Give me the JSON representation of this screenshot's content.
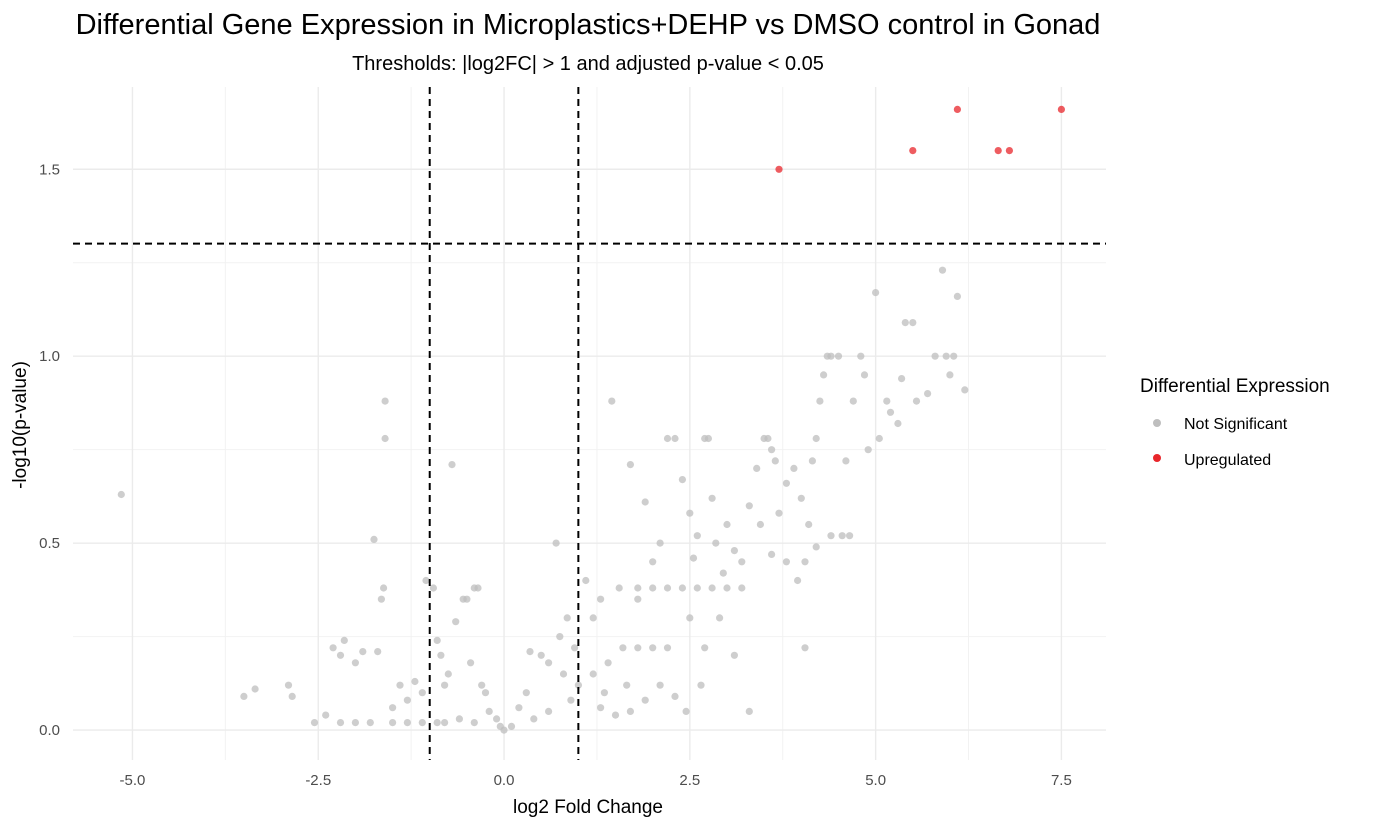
{
  "chart_data": {
    "type": "scatter",
    "title": "Differential Gene Expression in Microplastics+DEHP vs DMSO control in Gonad",
    "subtitle": "Thresholds: |log2FC| > 1 and adjusted p-value < 0.05",
    "xlabel": "log2 Fold Change",
    "ylabel": "-log10(p-value)",
    "xlim": [
      -5.8,
      8.1
    ],
    "ylim": [
      -0.08,
      1.72
    ],
    "x_ticks": [
      -5,
      -2.5,
      0,
      2.5,
      5,
      7.5
    ],
    "x_tick_labels": [
      "-5.0",
      "-2.5",
      "0.0",
      "2.5",
      "5.0",
      "7.5"
    ],
    "y_ticks": [
      0,
      0.5,
      1,
      1.5
    ],
    "y_tick_labels": [
      "0.0",
      "0.5",
      "1.0",
      "1.5"
    ],
    "grid": true,
    "thresholds": {
      "vertical": [
        -1,
        1
      ],
      "horizontal": 1.301
    },
    "legend": {
      "title": "Differential Expression",
      "position": "right",
      "entries": [
        {
          "label": "Not Significant",
          "color": "#bebebe"
        },
        {
          "label": "Upregulated",
          "color": "#e8262b"
        }
      ]
    },
    "series": [
      {
        "name": "Not Significant",
        "color": "#bebebe",
        "points": [
          [
            -5.15,
            0.63
          ],
          [
            -3.5,
            0.09
          ],
          [
            -3.35,
            0.11
          ],
          [
            -2.9,
            0.12
          ],
          [
            -2.85,
            0.09
          ],
          [
            -2.55,
            0.02
          ],
          [
            -2.4,
            0.04
          ],
          [
            -2.3,
            0.22
          ],
          [
            -2.2,
            0.2
          ],
          [
            -2.15,
            0.24
          ],
          [
            -2.0,
            0.18
          ],
          [
            -1.9,
            0.21
          ],
          [
            -1.75,
            0.51
          ],
          [
            -1.7,
            0.21
          ],
          [
            -1.65,
            0.35
          ],
          [
            -1.62,
            0.38
          ],
          [
            -1.6,
            0.88
          ],
          [
            -1.6,
            0.78
          ],
          [
            -1.5,
            0.06
          ],
          [
            -1.4,
            0.12
          ],
          [
            -1.3,
            0.08
          ],
          [
            -1.2,
            0.13
          ],
          [
            -1.1,
            0.1
          ],
          [
            -1.05,
            0.4
          ],
          [
            -0.95,
            0.38
          ],
          [
            -0.9,
            0.24
          ],
          [
            -0.85,
            0.2
          ],
          [
            -0.8,
            0.12
          ],
          [
            -0.75,
            0.15
          ],
          [
            -0.7,
            0.71
          ],
          [
            -0.65,
            0.29
          ],
          [
            -0.55,
            0.35
          ],
          [
            -0.5,
            0.35
          ],
          [
            -0.45,
            0.18
          ],
          [
            -0.4,
            0.38
          ],
          [
            -0.35,
            0.38
          ],
          [
            -0.3,
            0.12
          ],
          [
            -0.25,
            0.1
          ],
          [
            -0.2,
            0.05
          ],
          [
            -0.1,
            0.03
          ],
          [
            0.2,
            0.06
          ],
          [
            0.3,
            0.1
          ],
          [
            0.35,
            0.21
          ],
          [
            0.5,
            0.2
          ],
          [
            0.6,
            0.18
          ],
          [
            0.7,
            0.5
          ],
          [
            0.75,
            0.25
          ],
          [
            0.8,
            0.15
          ],
          [
            0.85,
            0.3
          ],
          [
            0.95,
            0.22
          ],
          [
            1.1,
            0.4
          ],
          [
            1.2,
            0.3
          ],
          [
            1.3,
            0.35
          ],
          [
            1.45,
            0.88
          ],
          [
            1.55,
            0.38
          ],
          [
            1.7,
            0.71
          ],
          [
            1.8,
            0.35
          ],
          [
            1.9,
            0.61
          ],
          [
            2.0,
            0.45
          ],
          [
            2.1,
            0.5
          ],
          [
            2.2,
            0.78
          ],
          [
            2.3,
            0.78
          ],
          [
            2.4,
            0.67
          ],
          [
            2.5,
            0.58
          ],
          [
            2.6,
            0.52
          ],
          [
            2.7,
            0.78
          ],
          [
            2.75,
            0.78
          ],
          [
            2.8,
            0.62
          ],
          [
            2.85,
            0.5
          ],
          [
            3.0,
            0.55
          ],
          [
            3.1,
            0.48
          ],
          [
            3.2,
            0.45
          ],
          [
            3.3,
            0.6
          ],
          [
            3.4,
            0.7
          ],
          [
            3.5,
            0.78
          ],
          [
            3.55,
            0.78
          ],
          [
            3.6,
            0.75
          ],
          [
            3.65,
            0.72
          ],
          [
            3.7,
            0.58
          ],
          [
            3.8,
            0.66
          ],
          [
            3.9,
            0.7
          ],
          [
            4.0,
            0.62
          ],
          [
            4.05,
            0.22
          ],
          [
            4.1,
            0.55
          ],
          [
            4.15,
            0.72
          ],
          [
            4.2,
            0.78
          ],
          [
            4.25,
            0.88
          ],
          [
            4.3,
            0.95
          ],
          [
            4.35,
            1.0
          ],
          [
            4.4,
            1.0
          ],
          [
            4.5,
            1.0
          ],
          [
            4.55,
            0.52
          ],
          [
            4.6,
            0.72
          ],
          [
            4.65,
            0.52
          ],
          [
            4.7,
            0.88
          ],
          [
            4.8,
            1.0
          ],
          [
            4.85,
            0.95
          ],
          [
            4.9,
            0.75
          ],
          [
            5.0,
            1.17
          ],
          [
            5.05,
            0.78
          ],
          [
            5.15,
            0.88
          ],
          [
            5.2,
            0.85
          ],
          [
            5.3,
            0.82
          ],
          [
            5.35,
            0.94
          ],
          [
            5.4,
            1.09
          ],
          [
            5.5,
            1.09
          ],
          [
            5.55,
            0.88
          ],
          [
            5.7,
            0.9
          ],
          [
            5.8,
            1.0
          ],
          [
            5.9,
            1.23
          ],
          [
            5.95,
            1.0
          ],
          [
            6.0,
            0.95
          ],
          [
            6.05,
            1.0
          ],
          [
            6.1,
            1.16
          ],
          [
            6.2,
            0.91
          ],
          [
            4.2,
            0.49
          ],
          [
            4.4,
            0.52
          ],
          [
            3.95,
            0.4
          ],
          [
            3.6,
            0.47
          ],
          [
            3.2,
            0.38
          ],
          [
            3.0,
            0.38
          ],
          [
            2.8,
            0.38
          ],
          [
            2.6,
            0.38
          ],
          [
            2.4,
            0.38
          ],
          [
            2.2,
            0.38
          ],
          [
            2.0,
            0.38
          ],
          [
            1.8,
            0.38
          ],
          [
            2.9,
            0.3
          ],
          [
            2.5,
            0.3
          ],
          [
            2.2,
            0.22
          ],
          [
            2.0,
            0.22
          ],
          [
            1.8,
            0.22
          ],
          [
            1.6,
            0.22
          ],
          [
            1.4,
            0.18
          ],
          [
            1.2,
            0.15
          ],
          [
            1.0,
            0.12
          ],
          [
            2.1,
            0.12
          ],
          [
            2.3,
            0.09
          ],
          [
            2.45,
            0.05
          ],
          [
            1.7,
            0.05
          ],
          [
            1.5,
            0.04
          ],
          [
            1.3,
            0.06
          ],
          [
            0.6,
            0.05
          ],
          [
            0.4,
            0.03
          ],
          [
            0.1,
            0.01
          ],
          [
            0.0,
            0.0
          ],
          [
            -0.05,
            0.01
          ],
          [
            -0.6,
            0.03
          ],
          [
            -0.9,
            0.02
          ],
          [
            -1.3,
            0.02
          ],
          [
            -1.8,
            0.02
          ],
          [
            -2.2,
            0.02
          ],
          [
            -2.0,
            0.02
          ],
          [
            -1.5,
            0.02
          ],
          [
            -1.1,
            0.02
          ],
          [
            -0.8,
            0.02
          ],
          [
            -0.4,
            0.02
          ],
          [
            3.3,
            0.05
          ],
          [
            3.1,
            0.2
          ],
          [
            2.7,
            0.22
          ],
          [
            2.65,
            0.12
          ],
          [
            1.9,
            0.08
          ],
          [
            1.65,
            0.12
          ],
          [
            1.35,
            0.1
          ],
          [
            0.9,
            0.08
          ],
          [
            3.8,
            0.45
          ],
          [
            3.45,
            0.55
          ],
          [
            2.95,
            0.42
          ],
          [
            2.55,
            0.46
          ],
          [
            4.05,
            0.45
          ]
        ]
      },
      {
        "name": "Upregulated",
        "color": "#e8262b",
        "points": [
          [
            3.7,
            1.5
          ],
          [
            5.5,
            1.55
          ],
          [
            6.1,
            1.66
          ],
          [
            6.65,
            1.55
          ],
          [
            6.8,
            1.55
          ],
          [
            7.5,
            1.66
          ]
        ]
      }
    ]
  }
}
